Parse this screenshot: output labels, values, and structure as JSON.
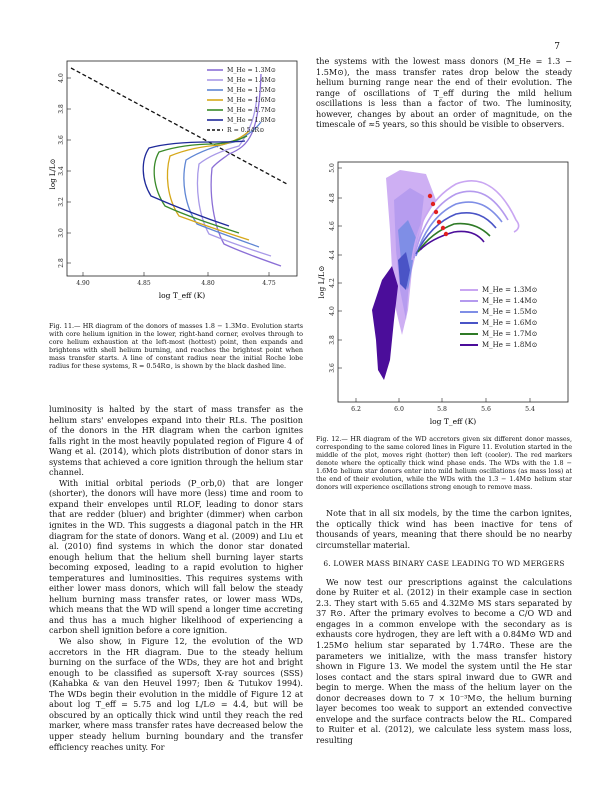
{
  "page_number": "7",
  "figure11": {
    "ylabel": "log L/L⊙",
    "xlabel": "log T_eff (K)",
    "xticks": [
      "4.90",
      "4.85",
      "4.80",
      "4.75"
    ],
    "yticks": [
      "4.0",
      "3.8",
      "3.6",
      "3.4",
      "3.2",
      "3.0",
      "2.8"
    ],
    "legend": [
      "M_He = 1.3M⊙",
      "M_He = 1.4M⊙",
      "M_He = 1.5M⊙",
      "M_He = 1.6M⊙",
      "M_He = 1.7M⊙",
      "M_He = 1.8M⊙",
      "R = 0.54R⊙"
    ],
    "colors": [
      "#8b6fd6",
      "#a99ae8",
      "#5f86d4",
      "#d6a81a",
      "#3a8a2a",
      "#1f2a9a",
      "#111111"
    ],
    "caption": "Fig. 11.— HR diagram of the donors of masses 1.8 − 1.3M⊙. Evolution starts with core helium ignition in the lower, right-hand corner, evolves through to core helium exhaustion at the left-most (hottest) point, then expands and brightens with shell helium burning, and reaches the brightest point when mass transfer starts. A line of constant radius near the initial Roche lobe radius for these systems, R = 0.54R⊙, is shown by the black dashed line."
  },
  "figure12": {
    "ylabel": "log L/L⊙",
    "xlabel": "log T_eff (K)",
    "xticks": [
      "6.2",
      "6.0",
      "5.8",
      "5.6",
      "5.4"
    ],
    "yticks": [
      "5.0",
      "4.8",
      "4.6",
      "4.4",
      "4.2",
      "4.0",
      "3.8",
      "3.6"
    ],
    "legend": [
      "M_He = 1.3M⊙",
      "M_He = 1.4M⊙",
      "M_He = 1.5M⊙",
      "M_He = 1.6M⊙",
      "M_He = 1.7M⊙",
      "M_He = 1.8M⊙"
    ],
    "colors": [
      "#c9a6f2",
      "#b49aee",
      "#7f8ee6",
      "#4a54c6",
      "#2f7a26",
      "#4b0d9a"
    ],
    "caption": "Fig. 12.— HR diagram of the WD accretors given six different donor masses, corresponding to the same colored lines in Figure 11. Evolution started in the middle of the plot, moves right (hotter) then left (cooler). The red markers denote where the optically thick wind phase ends. The WDs with the 1.8 − 1.6M⊙ helium star donors enter into mild helium oscillations (as mass loss) at the end of their evolution, while the WDs with the 1.3 − 1.4M⊙ helium star donors will experience oscillations strong enough to remove mass."
  },
  "left_column": [
    "luminosity is halted by the start of mass transfer as the helium stars' envelopes expand into their RLs. The position of the donors in the HR diagram when the carbon ignites falls right in the most heavily populated region of Figure 4 of Wang et al. (2014), which plots distribution of donor stars in systems that achieved a core ignition through the helium star channel.",
    "With initial orbital periods (P_orb,0) that are longer (shorter), the donors will have more (less) time and room to expand their envelopes until RLOF, leading to donor stars that are redder (bluer) and brighter (dimmer) when carbon ignites in the WD. This suggests a diagonal patch in the HR diagram for the state of donors. Wang et al. (2009) and Liu et al. (2010) find systems in which the donor star donated enough helium that the helium shell burning layer starts becoming exposed, leading to a rapid evolution to higher temperatures and luminosities. This requires systems with either lower mass donors, which will fall below the steady helium burning mass transfer rates, or lower mass WDs, which means that the WD will spend a longer time accreting and thus has a much higher likelihood of experiencing a carbon shell ignition before a core ignition.",
    "We also show, in Figure 12, the evolution of the WD accretors in the HR diagram. Due to the steady helium burning on the surface of the WDs, they are hot and bright enough to be classified as supersoft X-ray sources (SSS) (Kahabka & van den Heuvel 1997; Iben & Tutukov 1994). The WDs begin their evolution in the middle of Figure 12 at about log T_eff = 5.75 and log L/L⊙ = 4.4, but will be obscured by an optically thick wind until they reach the red marker, where mass transfer rates have decreased below the upper steady helium burning boundary and the transfer efficiency reaches unity. For"
  ],
  "right_column_top": "the systems with the lowest mass donors (M_He = 1.3 − 1.5M⊙), the mass transfer rates drop below the steady helium burning range near the end of their evolution. The range of oscillations of T_eff during the mild helium oscillations is less than a factor of two. The luminosity, however, changes by about an order of magnitude, on the timescale of ≈5 years, so this should be visible to observers.",
  "right_column_after_fig": "Note that in all six models, by the time the carbon ignites, the optically thick wind has been inactive for tens of thousands of years, meaning that there should be no nearby circumstellar material.",
  "section_heading": "6. LOWER MASS BINARY CASE LEADING TO WD MERGERS",
  "section_text": "We now test our prescriptions against the calculations done by Ruiter et al. (2012) in their example case in section 2.3. They start with 5.65 and 4.32M⊙ MS stars separated by 37 R⊙. After the primary evolves to become a C/O WD and engages in a common envelope with the secondary as is exhausts core hydrogen, they are left with a 0.84M⊙ WD and 1.25M⊙ helium star separated by 1.74R⊙. These are the parameters we initialize, with the mass transfer history shown in Figure 13. We model the system until the He star loses contact and the stars spiral inward due to GWR and begin to merge. When the mass of the helium layer on the donor decreases down to 7 × 10⁻³M⊙, the helium burning layer becomes too weak to support an extended convective envelope and the surface contracts below the RL. Compared to Ruiter et al. (2012), we calculate less system mass loss, resulting"
}
